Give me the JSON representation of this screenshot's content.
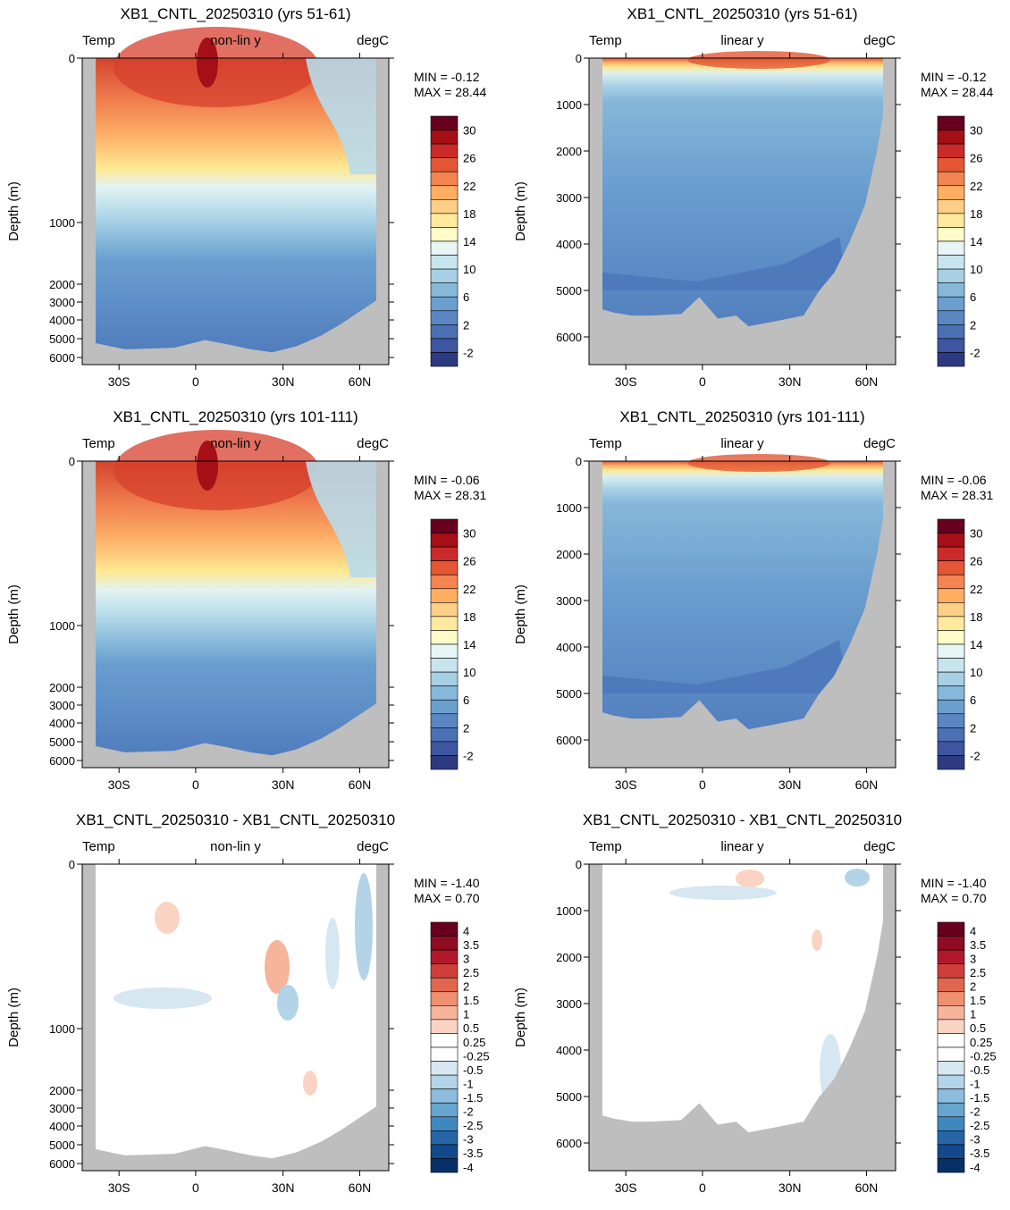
{
  "page": {
    "background": "#ffffff",
    "land_color": "#bebebe"
  },
  "chart_data": [
    {
      "type": "heatmap",
      "id": "p1",
      "title": "XB1_CNTL_20250310 (yrs 51-61)",
      "left_label": "Temp",
      "center_label": "non-lin y",
      "right_label": "degC",
      "ylabel": "Depth (m)",
      "yscale": "nonlinear",
      "ytick_labels": [
        "0",
        "1000",
        "2000",
        "3000",
        "4000",
        "5000",
        "6000"
      ],
      "xtick_labels": [
        "30S",
        "0",
        "30N",
        "60N"
      ],
      "min_label": "MIN =  -0.12",
      "max_label": "MAX =  28.44",
      "colorbar_labels": [
        "30",
        "26",
        "22",
        "18",
        "14",
        "10",
        "6",
        "2",
        "-2"
      ],
      "palette": "temp"
    },
    {
      "type": "heatmap",
      "id": "p2",
      "title": "XB1_CNTL_20250310 (yrs 51-61)",
      "left_label": "Temp",
      "center_label": "linear y",
      "right_label": "degC",
      "ylabel": "Depth (m)",
      "yscale": "linear",
      "ytick_labels": [
        "0",
        "1000",
        "2000",
        "3000",
        "4000",
        "5000",
        "6000"
      ],
      "xtick_labels": [
        "30S",
        "0",
        "30N",
        "60N"
      ],
      "min_label": "MIN =  -0.12",
      "max_label": "MAX =  28.44",
      "colorbar_labels": [
        "30",
        "26",
        "22",
        "18",
        "14",
        "10",
        "6",
        "2",
        "-2"
      ],
      "palette": "temp"
    },
    {
      "type": "heatmap",
      "id": "p3",
      "title": "XB1_CNTL_20250310 (yrs 101-111)",
      "left_label": "Temp",
      "center_label": "non-lin y",
      "right_label": "degC",
      "ylabel": "Depth (m)",
      "yscale": "nonlinear",
      "ytick_labels": [
        "0",
        "1000",
        "2000",
        "3000",
        "4000",
        "5000",
        "6000"
      ],
      "xtick_labels": [
        "30S",
        "0",
        "30N",
        "60N"
      ],
      "min_label": "MIN =  -0.06",
      "max_label": "MAX =  28.31",
      "colorbar_labels": [
        "30",
        "26",
        "22",
        "18",
        "14",
        "10",
        "6",
        "2",
        "-2"
      ],
      "palette": "temp"
    },
    {
      "type": "heatmap",
      "id": "p4",
      "title": "XB1_CNTL_20250310 (yrs 101-111)",
      "left_label": "Temp",
      "center_label": "linear y",
      "right_label": "degC",
      "ylabel": "Depth (m)",
      "yscale": "linear",
      "ytick_labels": [
        "0",
        "1000",
        "2000",
        "3000",
        "4000",
        "5000",
        "6000"
      ],
      "xtick_labels": [
        "30S",
        "0",
        "30N",
        "60N"
      ],
      "min_label": "MIN =  -0.06",
      "max_label": "MAX =  28.31",
      "colorbar_labels": [
        "30",
        "26",
        "22",
        "18",
        "14",
        "10",
        "6",
        "2",
        "-2"
      ],
      "palette": "temp"
    },
    {
      "type": "heatmap",
      "id": "p5",
      "title": "XB1_CNTL_20250310 - XB1_CNTL_20250310",
      "left_label": "Temp",
      "center_label": "non-lin y",
      "right_label": "degC",
      "ylabel": "Depth (m)",
      "yscale": "nonlinear",
      "ytick_labels": [
        "0",
        "1000",
        "2000",
        "3000",
        "4000",
        "5000",
        "6000"
      ],
      "xtick_labels": [
        "30S",
        "0",
        "30N",
        "60N"
      ],
      "min_label": "MIN = -1.40",
      "max_label": "MAX =   0.70",
      "colorbar_labels": [
        "4",
        "3.5",
        "3",
        "2.5",
        "2",
        "1.5",
        "1",
        "0.5",
        "0.25",
        "-0.25",
        "-0.5",
        "-1",
        "-1.5",
        "-2",
        "-2.5",
        "-3",
        "-3.5",
        "-4"
      ],
      "palette": "diff"
    },
    {
      "type": "heatmap",
      "id": "p6",
      "title": "XB1_CNTL_20250310 - XB1_CNTL_20250310",
      "left_label": "Temp",
      "center_label": "linear y",
      "right_label": "degC",
      "ylabel": "Depth (m)",
      "yscale": "linear",
      "ytick_labels": [
        "0",
        "1000",
        "2000",
        "3000",
        "4000",
        "5000",
        "6000"
      ],
      "xtick_labels": [
        "30S",
        "0",
        "30N",
        "60N"
      ],
      "min_label": "MIN = -1.40",
      "max_label": "MAX =   0.70",
      "colorbar_labels": [
        "4",
        "3.5",
        "3",
        "2.5",
        "2",
        "1.5",
        "1",
        "0.5",
        "0.25",
        "-0.25",
        "-0.5",
        "-1",
        "-1.5",
        "-2",
        "-2.5",
        "-3",
        "-3.5",
        "-4"
      ],
      "palette": "diff"
    }
  ]
}
